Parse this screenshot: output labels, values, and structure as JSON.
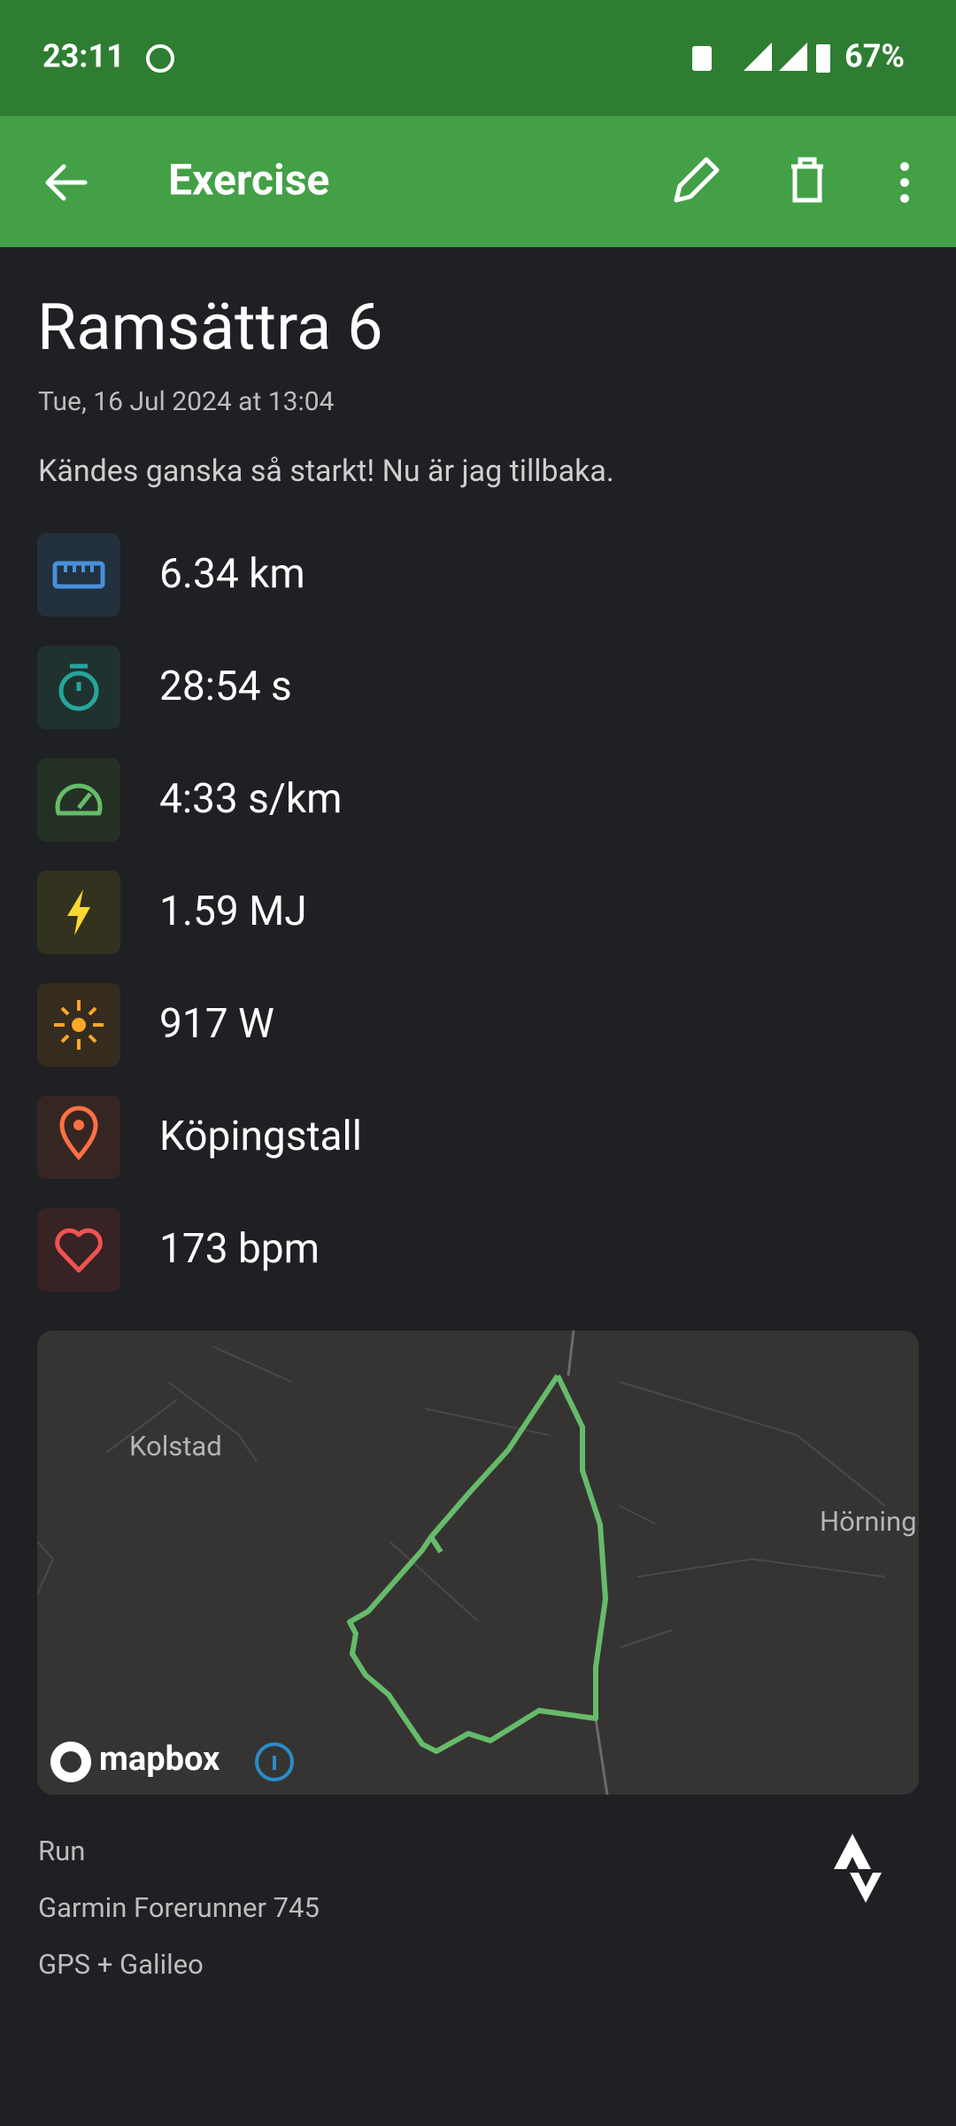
{
  "status": {
    "time": "23:11",
    "battery": "67%"
  },
  "appbar": {
    "title": "Exercise"
  },
  "exercise": {
    "title": "Ramsättra 6",
    "date": "Tue, 16 Jul 2024 at 13:04",
    "note": "Kändes ganska så starkt! Nu är jag tillbaka.",
    "stats": [
      "6.34 km",
      "28:54 s",
      "4:33 s/km",
      "1.59 MJ",
      "917 W",
      "Köpingstall",
      "173 bpm"
    ]
  },
  "map": {
    "labels": [
      "Kolstad",
      "Hörning"
    ],
    "attribution": "mapbox"
  },
  "footer": [
    "Run",
    "Garmin Forerunner 745",
    "GPS + Galileo"
  ]
}
